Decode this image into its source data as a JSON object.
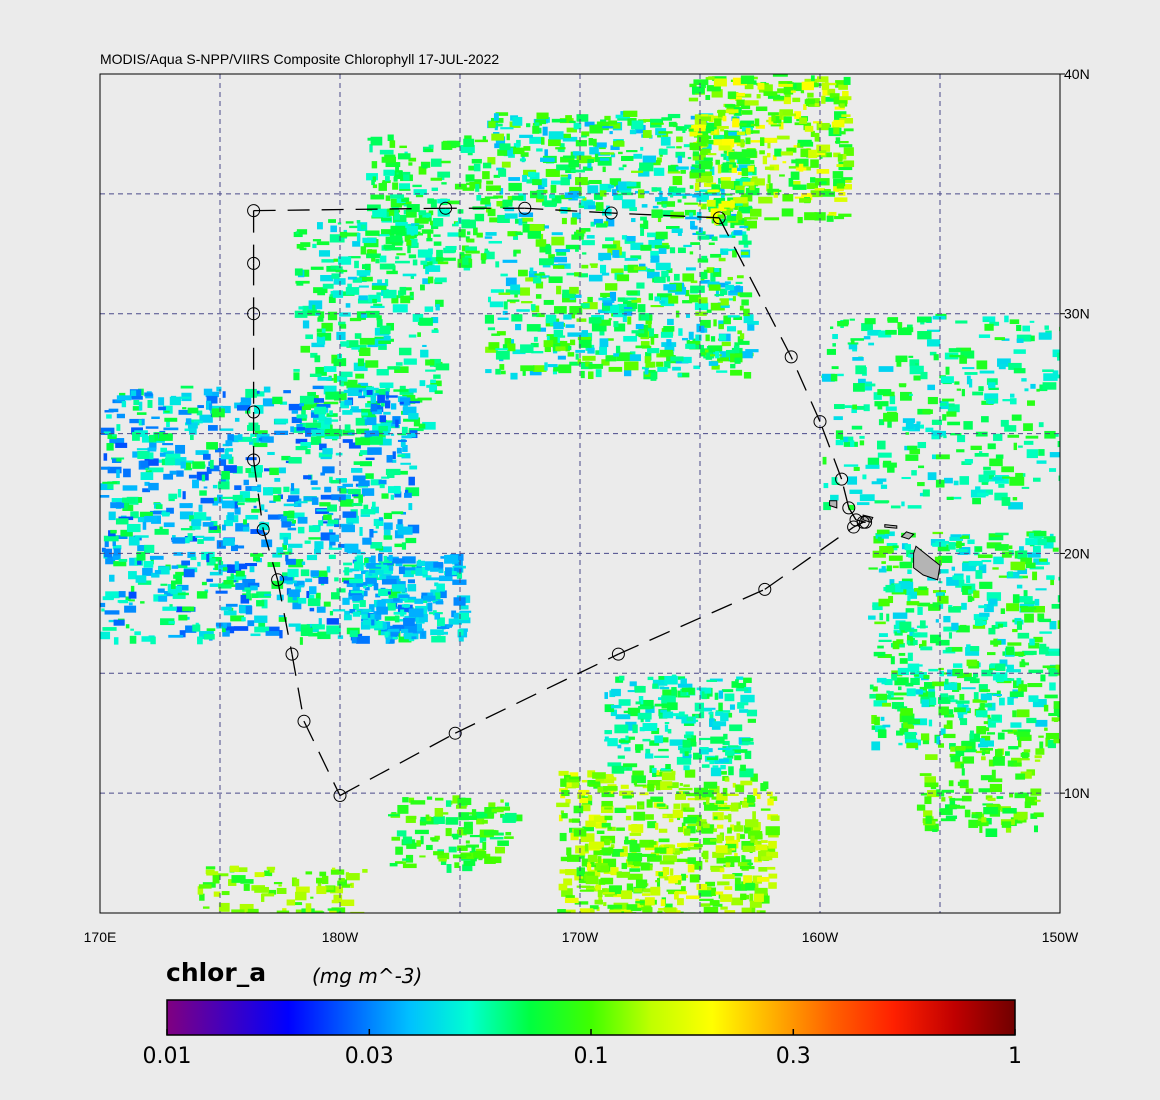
{
  "map": {
    "title": "MODIS/Aqua S-NPP/VIIRS Composite Chlorophyll 17-JUL-2022",
    "lon_range": [
      170,
      210
    ],
    "lat_range": [
      5,
      40
    ],
    "lon_ticks": [
      {
        "lon": 170,
        "label": "170E"
      },
      {
        "lon": 180,
        "label": "180W"
      },
      {
        "lon": 190,
        "label": "170W"
      },
      {
        "lon": 200,
        "label": "160W"
      },
      {
        "lon": 210,
        "label": "150W"
      }
    ],
    "lat_ticks": [
      {
        "lat": 40,
        "label": "40N"
      },
      {
        "lat": 30,
        "label": "30N"
      },
      {
        "lat": 20,
        "label": "20N"
      },
      {
        "lat": 10,
        "label": "10N"
      }
    ],
    "grid_lons": [
      175,
      180,
      185,
      190,
      195,
      200,
      205
    ],
    "grid_lats": [
      10,
      15,
      20,
      25,
      30,
      35
    ],
    "land_color": "#b4b4b4",
    "track_color": "#000000",
    "track_points": [
      [
        176.4,
        34.3
      ],
      [
        176.4,
        32.1
      ],
      [
        176.4,
        30.0
      ],
      [
        176.4,
        25.9
      ],
      [
        176.4,
        23.9
      ],
      [
        176.8,
        21.0
      ],
      [
        177.4,
        18.9
      ],
      [
        178.0,
        15.8
      ],
      [
        178.5,
        13.0
      ],
      [
        180.0,
        9.9
      ],
      [
        184.8,
        12.5
      ],
      [
        191.6,
        15.8
      ],
      [
        197.7,
        18.5
      ],
      [
        201.4,
        21.1
      ],
      [
        201.8,
        21.3
      ],
      [
        201.9,
        21.3
      ],
      [
        201.5,
        21.4
      ],
      [
        201.2,
        21.9
      ],
      [
        200.9,
        23.1
      ],
      [
        200.0,
        25.5
      ],
      [
        198.8,
        28.2
      ],
      [
        195.8,
        34.0
      ],
      [
        191.3,
        34.2
      ],
      [
        187.7,
        34.4
      ],
      [
        184.4,
        34.4
      ]
    ],
    "islands": [
      {
        "name": "Hawaii",
        "lonlat": [
          [
            204.0,
            20.3
          ],
          [
            204.5,
            19.9
          ],
          [
            205.0,
            19.5
          ],
          [
            204.9,
            18.9
          ],
          [
            204.3,
            19.1
          ],
          [
            203.9,
            19.4
          ],
          [
            203.9,
            20.0
          ]
        ]
      },
      {
        "name": "Maui",
        "lonlat": [
          [
            203.6,
            20.9
          ],
          [
            203.9,
            20.8
          ],
          [
            203.7,
            20.6
          ],
          [
            203.4,
            20.7
          ]
        ]
      },
      {
        "name": "Molokai",
        "lonlat": [
          [
            202.7,
            21.2
          ],
          [
            203.2,
            21.15
          ],
          [
            203.2,
            21.05
          ],
          [
            202.7,
            21.1
          ]
        ]
      },
      {
        "name": "Oahu",
        "lonlat": [
          [
            201.8,
            21.6
          ],
          [
            202.2,
            21.5
          ],
          [
            202.1,
            21.3
          ],
          [
            201.8,
            21.4
          ]
        ]
      },
      {
        "name": "Kauai",
        "lonlat": [
          [
            200.4,
            22.2
          ],
          [
            200.7,
            22.2
          ],
          [
            200.7,
            21.9
          ],
          [
            200.4,
            22.0
          ]
        ]
      }
    ]
  },
  "colorbar": {
    "variable": "chlor_a",
    "units": "(mg m^-3)",
    "scale": "log",
    "range": [
      0.01,
      1
    ],
    "ticks": [
      {
        "value": 0.01,
        "label": "0.01"
      },
      {
        "value": 0.03,
        "label": "0.03"
      },
      {
        "value": 0.1,
        "label": "0.1"
      },
      {
        "value": 0.3,
        "label": "0.3"
      },
      {
        "value": 1,
        "label": "1"
      }
    ],
    "colormap": [
      "#800080",
      "#4000c0",
      "#0000ff",
      "#0060ff",
      "#00c0ff",
      "#00ffd0",
      "#00ff40",
      "#40ff00",
      "#c0ff00",
      "#ffff00",
      "#ffb000",
      "#ff6000",
      "#ff2000",
      "#c00000",
      "#700000"
    ]
  }
}
